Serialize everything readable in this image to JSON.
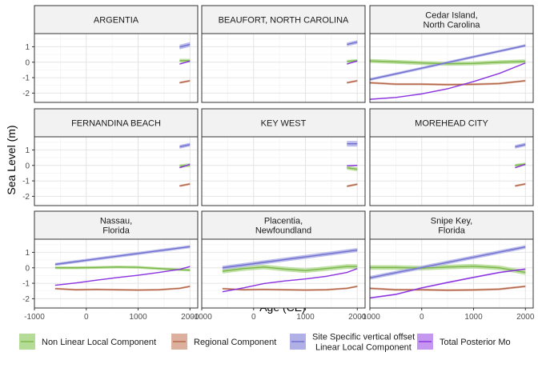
{
  "chart_data": {
    "type": "line",
    "title": "",
    "xlabel": "Age (CE)",
    "ylabel": "Sea Level (m)",
    "x_ticks": [
      -1000,
      0,
      1000,
      2000
    ],
    "x_tick_labels": [
      "-1000",
      "0",
      "1000",
      "2000"
    ],
    "y_ticks": [
      -2,
      -1,
      0,
      1
    ],
    "y_tick_labels": [
      "-2",
      "-1",
      "0",
      "1"
    ],
    "ylim": [
      -2.6,
      1.85
    ],
    "grid": true,
    "legend_position": "bottom",
    "series_legend": [
      {
        "key": "nl",
        "label_lines": [
          "Non Linear Local Component"
        ],
        "color": "#7ab648",
        "fill": "#b5dc97"
      },
      {
        "key": "reg",
        "label_lines": [
          "Regional Component"
        ],
        "color": "#b4674a",
        "fill": "#ddb09e"
      },
      {
        "key": "site",
        "label_lines": [
          "Site Specific vertical offset +",
          "Linear Local Component"
        ],
        "color": "#6f6fd0",
        "fill": "#b0b0e6"
      },
      {
        "key": "tot",
        "label_lines": [
          "Total Posterior Mo"
        ],
        "color": "#8b33e0",
        "fill": "#c597f0"
      }
    ],
    "panels": [
      {
        "title_lines": [
          "ARGENTIA"
        ],
        "xlim": [
          -1000,
          2150
        ],
        "series": {
          "nl": {
            "x": [
              1800,
              2000
            ],
            "y": [
              0.1,
              0.1
            ],
            "band": 0.12
          },
          "reg": {
            "x": [
              1800,
              2000
            ],
            "y": [
              -1.33,
              -1.2
            ],
            "band": 0.07
          },
          "site": {
            "x": [
              1800,
              2000
            ],
            "y": [
              0.98,
              1.15
            ],
            "band": 0.15
          },
          "tot": {
            "x": [
              1800,
              2000
            ],
            "y": [
              -0.12,
              0.07
            ],
            "band": 0.03
          }
        },
        "show_y_axis": true,
        "show_x_axis": false
      },
      {
        "title_lines": [
          "BEAUFORT, NORTH CAROLINA"
        ],
        "xlim": [
          -1000,
          2150
        ],
        "series": {
          "nl": {
            "x": [
              1800,
              2000
            ],
            "y": [
              0.05,
              0.1
            ],
            "band": 0.1
          },
          "reg": {
            "x": [
              1800,
              2000
            ],
            "y": [
              -1.33,
              -1.2
            ],
            "band": 0.07
          },
          "site": {
            "x": [
              1800,
              2000
            ],
            "y": [
              1.15,
              1.3
            ],
            "band": 0.12
          },
          "tot": {
            "x": [
              1800,
              2000
            ],
            "y": [
              -0.12,
              0.08
            ],
            "band": 0.03
          }
        },
        "show_y_axis": false,
        "show_x_axis": false
      },
      {
        "title_lines": [
          "Cedar Island,",
          "North Carolina"
        ],
        "xlim": [
          -1000,
          2150
        ],
        "series": {
          "nl": {
            "x": [
              -1000,
              -500,
              0,
              500,
              1000,
              1500,
              2000
            ],
            "y": [
              0.08,
              0.02,
              -0.05,
              -0.1,
              -0.08,
              0.0,
              0.05
            ],
            "band": 0.13
          },
          "reg": {
            "x": [
              -1000,
              -500,
              0,
              500,
              1000,
              1500,
              2000
            ],
            "y": [
              -1.33,
              -1.42,
              -1.42,
              -1.45,
              -1.43,
              -1.38,
              -1.2
            ],
            "band": 0.07
          },
          "site": {
            "x": [
              -1000,
              2000
            ],
            "y": [
              -1.12,
              1.08
            ],
            "band": 0.09
          },
          "tot": {
            "x": [
              -1000,
              -500,
              0,
              500,
              1000,
              1500,
              2000
            ],
            "y": [
              -2.4,
              -2.28,
              -2.05,
              -1.72,
              -1.25,
              -0.72,
              -0.05
            ],
            "band": 0.03
          }
        },
        "show_y_axis": false,
        "show_x_axis": false
      },
      {
        "title_lines": [
          "FERNANDINA BEACH"
        ],
        "xlim": [
          -1000,
          2150
        ],
        "series": {
          "nl": {
            "x": [
              1800,
              2000
            ],
            "y": [
              -0.05,
              0.02
            ],
            "band": 0.12
          },
          "reg": {
            "x": [
              1800,
              2000
            ],
            "y": [
              -1.33,
              -1.2
            ],
            "band": 0.07
          },
          "site": {
            "x": [
              1800,
              2000
            ],
            "y": [
              1.2,
              1.35
            ],
            "band": 0.12
          },
          "tot": {
            "x": [
              1800,
              2000
            ],
            "y": [
              -0.15,
              0.07
            ],
            "band": 0.03
          }
        },
        "show_y_axis": true,
        "show_x_axis": false
      },
      {
        "title_lines": [
          "KEY WEST"
        ],
        "xlim": [
          -1000,
          2150
        ],
        "series": {
          "nl": {
            "x": [
              1800,
              2000
            ],
            "y": [
              -0.15,
              -0.25
            ],
            "band": 0.13
          },
          "reg": {
            "x": [
              1800,
              2000
            ],
            "y": [
              -1.35,
              -1.22
            ],
            "band": 0.07
          },
          "site": {
            "x": [
              1800,
              2000
            ],
            "y": [
              1.4,
              1.4
            ],
            "band": 0.18
          },
          "tot": {
            "x": [
              1800,
              2000
            ],
            "y": [
              -0.02,
              0.0
            ],
            "band": 0.03
          }
        },
        "show_y_axis": false,
        "show_x_axis": false
      },
      {
        "title_lines": [
          "MOREHEAD CITY"
        ],
        "xlim": [
          -1000,
          2150
        ],
        "series": {
          "nl": {
            "x": [
              1800,
              2000
            ],
            "y": [
              0.0,
              0.08
            ],
            "band": 0.1
          },
          "reg": {
            "x": [
              1800,
              2000
            ],
            "y": [
              -1.33,
              -1.2
            ],
            "band": 0.07
          },
          "site": {
            "x": [
              1800,
              2000
            ],
            "y": [
              1.2,
              1.35
            ],
            "band": 0.12
          },
          "tot": {
            "x": [
              1800,
              2000
            ],
            "y": [
              -0.15,
              0.07
            ],
            "band": 0.03
          }
        },
        "show_y_axis": false,
        "show_x_axis": false
      },
      {
        "title_lines": [
          "Nassau,",
          "Florida"
        ],
        "xlim": [
          -1000,
          2150
        ],
        "series": {
          "nl": {
            "x": [
              -600,
              -200,
              200,
              600,
              1000,
              1400,
              1800,
              2000
            ],
            "y": [
              0.0,
              0.0,
              0.02,
              0.05,
              0.03,
              -0.05,
              -0.12,
              -0.15
            ],
            "band": 0.09
          },
          "reg": {
            "x": [
              -600,
              -200,
              200,
              600,
              1000,
              1400,
              1800,
              2000
            ],
            "y": [
              -1.35,
              -1.42,
              -1.4,
              -1.42,
              -1.44,
              -1.42,
              -1.33,
              -1.2
            ],
            "band": 0.06
          },
          "site": {
            "x": [
              -600,
              2000
            ],
            "y": [
              0.22,
              1.37
            ],
            "band": 0.1
          },
          "tot": {
            "x": [
              -600,
              -200,
              200,
              600,
              1000,
              1400,
              1800,
              2000
            ],
            "y": [
              -1.13,
              -0.98,
              -0.8,
              -0.63,
              -0.48,
              -0.3,
              -0.1,
              0.08
            ],
            "band": 0.03
          }
        },
        "show_y_axis": true,
        "show_x_axis": true
      },
      {
        "title_lines": [
          "Placentia,",
          "Newfoundland"
        ],
        "xlim": [
          -1000,
          2150
        ],
        "series": {
          "nl": {
            "x": [
              -600,
              -200,
              200,
              600,
              1000,
              1400,
              1800,
              2000
            ],
            "y": [
              -0.22,
              -0.05,
              0.05,
              -0.08,
              -0.18,
              -0.05,
              0.08,
              0.08
            ],
            "band": 0.15
          },
          "reg": {
            "x": [
              -600,
              -200,
              200,
              600,
              1000,
              1400,
              1800,
              2000
            ],
            "y": [
              -1.35,
              -1.42,
              -1.4,
              -1.42,
              -1.44,
              -1.42,
              -1.33,
              -1.2
            ],
            "band": 0.06
          },
          "site": {
            "x": [
              -600,
              2000
            ],
            "y": [
              0.0,
              1.15
            ],
            "band": 0.13
          },
          "tot": {
            "x": [
              -600,
              -200,
              200,
              600,
              1000,
              1400,
              1800,
              2000
            ],
            "y": [
              -1.55,
              -1.3,
              -1.02,
              -0.85,
              -0.72,
              -0.55,
              -0.3,
              -0.05
            ],
            "band": 0.03
          }
        },
        "show_y_axis": false,
        "show_x_axis": true
      },
      {
        "title_lines": [
          "Snipe Key,",
          "Florida"
        ],
        "xlim": [
          -1000,
          2150
        ],
        "series": {
          "nl": {
            "x": [
              -1000,
              -500,
              0,
              500,
              1000,
              1500,
              2000
            ],
            "y": [
              0.02,
              0.02,
              -0.02,
              0.05,
              0.1,
              0.0,
              -0.3
            ],
            "band": 0.15
          },
          "reg": {
            "x": [
              -1000,
              -500,
              0,
              500,
              1000,
              1500,
              2000
            ],
            "y": [
              -1.33,
              -1.42,
              -1.42,
              -1.45,
              -1.43,
              -1.38,
              -1.2
            ],
            "band": 0.07
          },
          "site": {
            "x": [
              -1000,
              2000
            ],
            "y": [
              -0.65,
              1.35
            ],
            "band": 0.12
          },
          "tot": {
            "x": [
              -1000,
              -500,
              0,
              500,
              1000,
              1500,
              2000
            ],
            "y": [
              -1.95,
              -1.72,
              -1.3,
              -0.95,
              -0.62,
              -0.3,
              -0.08
            ],
            "band": 0.05
          }
        },
        "show_y_axis": false,
        "show_x_axis": true
      }
    ]
  }
}
